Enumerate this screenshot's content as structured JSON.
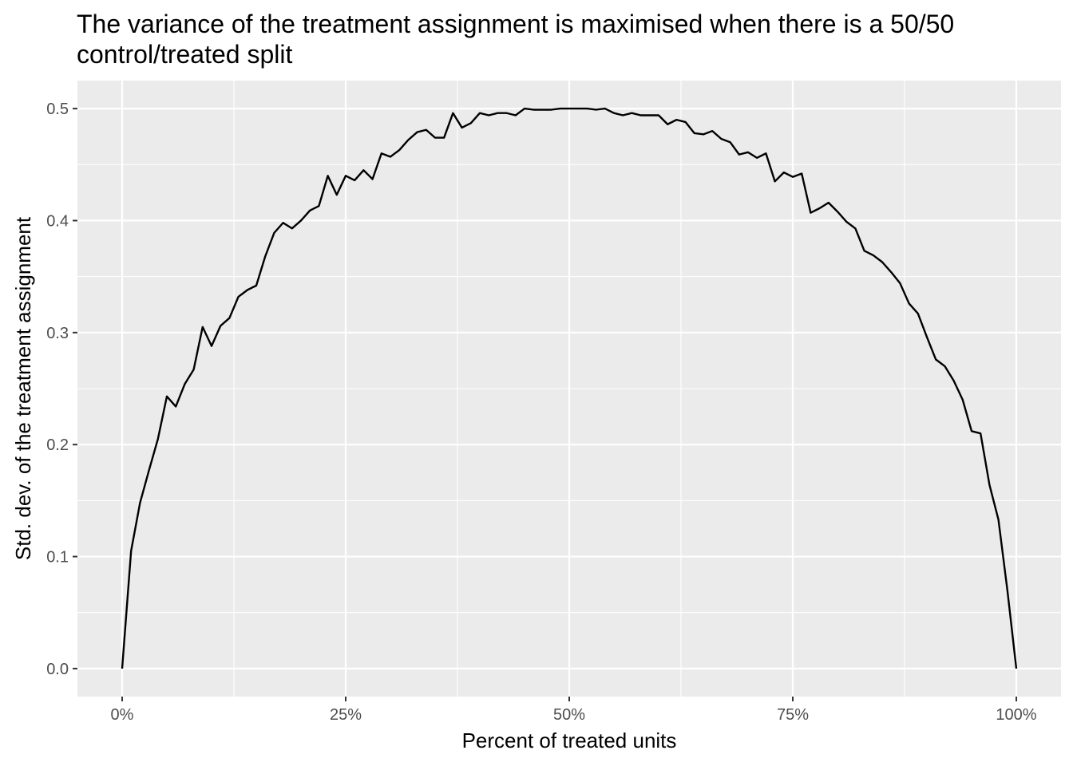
{
  "chart_data": {
    "type": "line",
    "title_lines": [
      "The variance of the treatment assignment is maximised when there is a 50/50",
      "control/treated split"
    ],
    "xlabel": "Percent of treated units",
    "ylabel": "Std. dev. of the treatment assignment",
    "xlim": [
      -0.05,
      1.05
    ],
    "ylim": [
      -0.025,
      0.525
    ],
    "x_ticks": [
      0,
      0.25,
      0.5,
      0.75,
      1
    ],
    "x_tick_labels": [
      "0%",
      "25%",
      "50%",
      "75%",
      "100%"
    ],
    "y_ticks": [
      0,
      0.1,
      0.2,
      0.3,
      0.4,
      0.5
    ],
    "y_tick_labels": [
      "0.0",
      "0.1",
      "0.2",
      "0.3",
      "0.4",
      "0.5"
    ],
    "grid": true,
    "colors": {
      "panel": "#ebebeb",
      "grid": "#ffffff",
      "line": "#000000",
      "tick": "#333333"
    },
    "series": [
      {
        "x": [
          0,
          0.01,
          0.02,
          0.03,
          0.04,
          0.05,
          0.06,
          0.07,
          0.08,
          0.09,
          0.1,
          0.11,
          0.12,
          0.13,
          0.14,
          0.15,
          0.16,
          0.17,
          0.18,
          0.19,
          0.2,
          0.21,
          0.22,
          0.23,
          0.24,
          0.25,
          0.26,
          0.27,
          0.28,
          0.29,
          0.3,
          0.31,
          0.32,
          0.33,
          0.34,
          0.35,
          0.36,
          0.37,
          0.38,
          0.39,
          0.4,
          0.41,
          0.42,
          0.43,
          0.44,
          0.45,
          0.46,
          0.47,
          0.48,
          0.49,
          0.5,
          0.51,
          0.52,
          0.53,
          0.54,
          0.55,
          0.56,
          0.57,
          0.58,
          0.59,
          0.6,
          0.61,
          0.62,
          0.63,
          0.64,
          0.65,
          0.66,
          0.67,
          0.68,
          0.69,
          0.7,
          0.71,
          0.72,
          0.73,
          0.74,
          0.75,
          0.76,
          0.77,
          0.78,
          0.79,
          0.8,
          0.81,
          0.82,
          0.83,
          0.84,
          0.85,
          0.86,
          0.87,
          0.88,
          0.89,
          0.9,
          0.91,
          0.92,
          0.93,
          0.94,
          0.95,
          0.96,
          0.97,
          0.98,
          0.99,
          1.0
        ],
        "y": [
          0,
          0.105,
          0.148,
          0.177,
          0.205,
          0.243,
          0.234,
          0.254,
          0.267,
          0.305,
          0.288,
          0.306,
          0.313,
          0.332,
          0.338,
          0.342,
          0.368,
          0.389,
          0.398,
          0.393,
          0.4,
          0.409,
          0.413,
          0.44,
          0.423,
          0.44,
          0.436,
          0.445,
          0.437,
          0.46,
          0.457,
          0.463,
          0.472,
          0.479,
          0.481,
          0.474,
          0.474,
          0.496,
          0.483,
          0.487,
          0.496,
          0.494,
          0.496,
          0.496,
          0.494,
          0.5,
          0.499,
          0.499,
          0.499,
          0.5,
          0.5,
          0.5,
          0.5,
          0.499,
          0.5,
          0.496,
          0.494,
          0.496,
          0.494,
          0.494,
          0.494,
          0.486,
          0.49,
          0.488,
          0.478,
          0.477,
          0.48,
          0.473,
          0.47,
          0.459,
          0.461,
          0.456,
          0.46,
          0.435,
          0.443,
          0.439,
          0.442,
          0.407,
          0.411,
          0.416,
          0.408,
          0.399,
          0.393,
          0.373,
          0.369,
          0.363,
          0.354,
          0.344,
          0.326,
          0.317,
          0.296,
          0.276,
          0.27,
          0.257,
          0.24,
          0.212,
          0.21,
          0.164,
          0.133,
          0.07,
          0
        ]
      }
    ]
  }
}
